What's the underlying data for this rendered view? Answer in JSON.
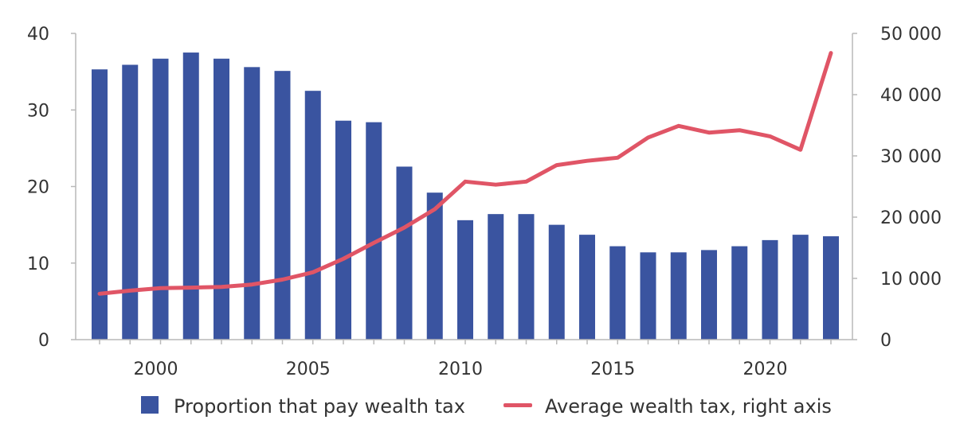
{
  "chart_data": {
    "type": "bar",
    "title": "",
    "xlabel": "",
    "ylabel": "",
    "x": [
      1998,
      1999,
      2000,
      2001,
      2002,
      2003,
      2004,
      2005,
      2006,
      2007,
      2008,
      2009,
      2010,
      2011,
      2012,
      2013,
      2014,
      2015,
      2016,
      2017,
      2018,
      2019,
      2020,
      2021,
      2022
    ],
    "x_ticks": [
      "2000",
      "2005",
      "2010",
      "2015",
      "2020"
    ],
    "y_left_ticks": [
      "0",
      "10",
      "20",
      "30",
      "40"
    ],
    "y_right_ticks": [
      "0",
      "10 000",
      "20 000",
      "30 000",
      "40 000",
      "50 000"
    ],
    "ylim": [
      0,
      40
    ],
    "y2lim": [
      0,
      50000
    ],
    "series": [
      {
        "name": "Proportion that pay wealth tax",
        "type": "bar",
        "axis": "left",
        "color": "#3a54a0",
        "values": [
          35.3,
          35.9,
          36.7,
          37.5,
          36.7,
          35.6,
          35.1,
          32.5,
          28.6,
          28.4,
          22.6,
          19.2,
          15.6,
          16.4,
          16.4,
          15.0,
          13.7,
          12.2,
          11.4,
          11.4,
          11.7,
          12.2,
          13.0,
          13.7,
          13.5
        ]
      },
      {
        "name": "Average wealth tax, right axis",
        "type": "line",
        "axis": "right",
        "color": "#e05566",
        "values": [
          7500,
          8000,
          8400,
          8500,
          8600,
          9000,
          9800,
          11000,
          13200,
          15800,
          18300,
          21300,
          25800,
          25300,
          25800,
          28500,
          29200,
          29700,
          33000,
          34900,
          33800,
          34200,
          33200,
          31000,
          46800
        ]
      }
    ],
    "legend_position": "bottom"
  }
}
